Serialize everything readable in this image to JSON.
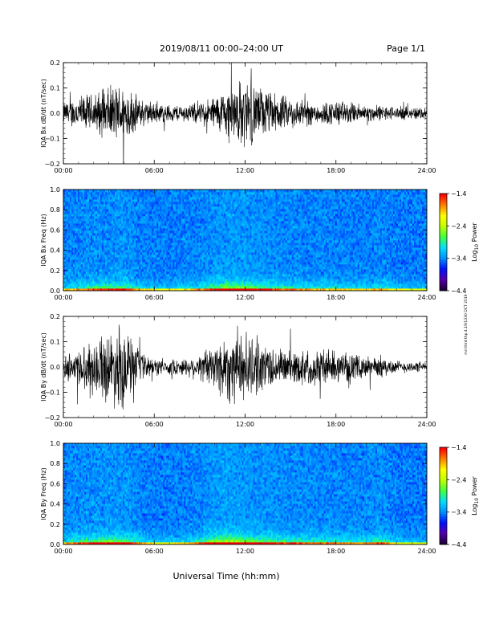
{
  "header": {
    "title": "2019/08/11  00:00–24:00 UT",
    "page": "Page 1/1"
  },
  "footer": {
    "xlabel": "Universal Time (hh:mm)"
  },
  "side_note": "mri thrd thp 4.19/1330 OCT 2019",
  "colors": {
    "trace": "#000000",
    "colormap": [
      "#1a0033",
      "#5500aa",
      "#0010ff",
      "#0090ff",
      "#00e0ff",
      "#40ff40",
      "#c0ff00",
      "#ffff00",
      "#ff8000",
      "#ff0000"
    ]
  },
  "chart_data": [
    {
      "type": "line",
      "ylabel": "IQA Bx dB/dt (nT/sec)",
      "xlim": [
        0,
        24
      ],
      "ylim": [
        -0.2,
        0.2
      ],
      "yticks": [
        -0.2,
        -0.1,
        0.0,
        0.1,
        0.2
      ],
      "ytick_labels": [
        "−0.2",
        "−0.1",
        "0.0",
        "0.1",
        "0.2"
      ],
      "xticks": [
        0,
        6,
        12,
        18,
        24
      ],
      "xtick_labels": [
        "00:00",
        "06:00",
        "12:00",
        "18:00",
        "24:00"
      ],
      "amplitude_envelope": {
        "hours": [
          0,
          1,
          2,
          3,
          4,
          5,
          6,
          7,
          8,
          9,
          10,
          11,
          12,
          13,
          14,
          15,
          16,
          17,
          18,
          19,
          20,
          21,
          22,
          23,
          24
        ],
        "amplitude": [
          0.05,
          0.08,
          0.09,
          0.12,
          0.14,
          0.07,
          0.05,
          0.04,
          0.04,
          0.05,
          0.08,
          0.13,
          0.16,
          0.12,
          0.09,
          0.07,
          0.06,
          0.05,
          0.06,
          0.05,
          0.04,
          0.035,
          0.03,
          0.03,
          0.03
        ]
      }
    },
    {
      "type": "heatmap",
      "ylabel": "IQA Bx Freq (Hz)",
      "xlim": [
        0,
        24
      ],
      "ylim": [
        0.0,
        1.0
      ],
      "yticks": [
        0.0,
        0.2,
        0.4,
        0.6,
        0.8,
        1.0
      ],
      "ytick_labels": [
        "0.0",
        "0.2",
        "0.4",
        "0.6",
        "0.8",
        "1.0"
      ],
      "xticks": [
        0,
        6,
        12,
        18,
        24
      ],
      "xtick_labels": [
        "00:00",
        "06:00",
        "12:00",
        "18:00",
        "24:00"
      ],
      "colorbar": {
        "label_main": "Log",
        "label_sub": "10",
        "label_tail": " Power",
        "range": [
          -4.4,
          -1.4
        ],
        "ticks": [
          -1.4,
          -2.4,
          -3.4,
          -4.4
        ],
        "tick_labels": [
          "−1.4",
          "−2.4",
          "−3.4",
          "−4.4"
        ]
      },
      "activity": {
        "hours": [
          0,
          1,
          2,
          3,
          4,
          5,
          6,
          7,
          8,
          9,
          10,
          11,
          12,
          13,
          14,
          15,
          16,
          17,
          18,
          19,
          20,
          21,
          22,
          23,
          24
        ],
        "level": [
          0.35,
          0.45,
          0.55,
          0.6,
          0.65,
          0.4,
          0.3,
          0.3,
          0.35,
          0.45,
          0.65,
          0.8,
          0.75,
          0.65,
          0.55,
          0.5,
          0.45,
          0.4,
          0.4,
          0.35,
          0.35,
          0.45,
          0.3,
          0.25,
          0.25
        ]
      }
    },
    {
      "type": "line",
      "ylabel": "IQA By dB/dt (nT/sec)",
      "xlim": [
        0,
        24
      ],
      "ylim": [
        -0.2,
        0.2
      ],
      "yticks": [
        -0.2,
        -0.1,
        0.0,
        0.1,
        0.2
      ],
      "ytick_labels": [
        "−0.2",
        "−0.1",
        "0.0",
        "0.1",
        "0.2"
      ],
      "xticks": [
        0,
        6,
        12,
        18,
        24
      ],
      "xtick_labels": [
        "00:00",
        "06:00",
        "12:00",
        "18:00",
        "24:00"
      ],
      "amplitude_envelope": {
        "hours": [
          0,
          1,
          2,
          3,
          4,
          5,
          6,
          7,
          8,
          9,
          10,
          11,
          12,
          13,
          14,
          15,
          16,
          17,
          18,
          19,
          20,
          21,
          22,
          23,
          24
        ],
        "amplitude": [
          0.05,
          0.09,
          0.12,
          0.16,
          0.2,
          0.07,
          0.04,
          0.035,
          0.04,
          0.06,
          0.12,
          0.17,
          0.16,
          0.12,
          0.09,
          0.08,
          0.08,
          0.09,
          0.07,
          0.06,
          0.05,
          0.05,
          0.03,
          0.025,
          0.025
        ]
      }
    },
    {
      "type": "heatmap",
      "ylabel": "IQA By Freq (Hz)",
      "xlim": [
        0,
        24
      ],
      "ylim": [
        0.0,
        1.0
      ],
      "yticks": [
        0.0,
        0.2,
        0.4,
        0.6,
        0.8,
        1.0
      ],
      "ytick_labels": [
        "0.0",
        "0.2",
        "0.4",
        "0.6",
        "0.8",
        "1.0"
      ],
      "xticks": [
        0,
        6,
        12,
        18,
        24
      ],
      "xtick_labels": [
        "00:00",
        "06:00",
        "12:00",
        "18:00",
        "24:00"
      ],
      "colorbar": {
        "label_main": "Log",
        "label_sub": "10",
        "label_tail": " Power",
        "range": [
          -4.4,
          -1.4
        ],
        "ticks": [
          -1.4,
          -2.4,
          -3.4,
          -4.4
        ],
        "tick_labels": [
          "−1.4",
          "−2.4",
          "−3.4",
          "−4.4"
        ]
      },
      "activity": {
        "hours": [
          0,
          1,
          2,
          3,
          4,
          5,
          6,
          7,
          8,
          9,
          10,
          11,
          12,
          13,
          14,
          15,
          16,
          17,
          18,
          19,
          20,
          21,
          22,
          23,
          24
        ],
        "level": [
          0.4,
          0.55,
          0.65,
          0.7,
          0.75,
          0.45,
          0.3,
          0.3,
          0.35,
          0.5,
          0.8,
          0.95,
          0.8,
          0.7,
          0.6,
          0.55,
          0.55,
          0.5,
          0.5,
          0.45,
          0.45,
          0.6,
          0.3,
          0.25,
          0.25
        ]
      }
    }
  ]
}
